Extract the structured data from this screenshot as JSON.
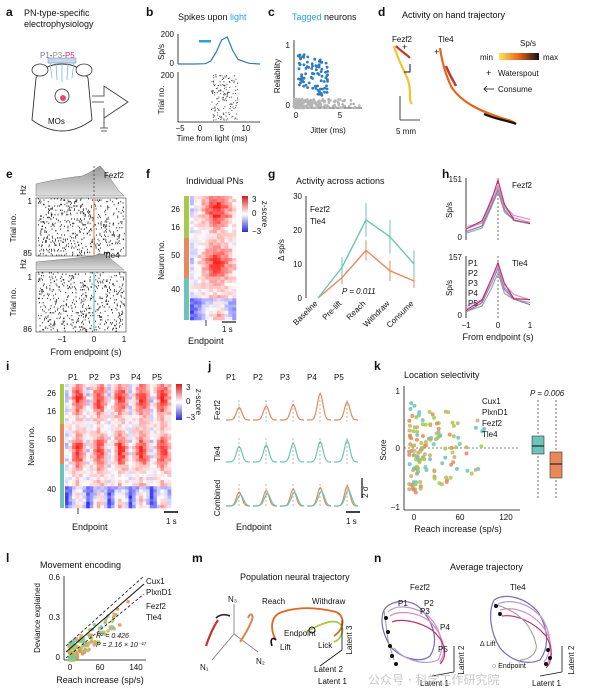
{
  "panels": {
    "a": {
      "letter": "a",
      "title1": "PN-type-specific",
      "title2": "electrophysiology",
      "label_p1": "P1",
      "label_dash1": "-",
      "label_p3": "P3",
      "label_dash2": "-",
      "label_p5": "P5",
      "label_area": "MOs"
    },
    "b": {
      "letter": "b",
      "title_pre": "Spikes upon ",
      "title_hl": "light",
      "ylab_top": "Sp/s",
      "yticks_top": [
        "200",
        "0"
      ],
      "yticks_bot": [
        "200"
      ],
      "ylab_bot": "Trial no.",
      "xticks": [
        "−5",
        "0",
        "5",
        "10"
      ],
      "xlabel": "Time from light (ms)"
    },
    "c": {
      "letter": "c",
      "title_hl": "Tagged",
      "title_rest": " neurons",
      "ylabel": "Reliability",
      "yticks": [
        "1",
        "0"
      ],
      "xticks": [
        "0",
        "5"
      ],
      "xlabel": "Jitter (ms)"
    },
    "d": {
      "letter": "d",
      "title": "Activity on hand trajectory",
      "fezf2": "Fezf2",
      "tle4": "Tle4",
      "cbar_title": "Sp/s",
      "cbar_min": "min",
      "cbar_max": "max",
      "legend_spout": "Waterspout",
      "legend_consume": "Consume",
      "scale": "5 mm"
    },
    "e": {
      "letter": "e",
      "hz1": "Hz",
      "name1": "Fezf2",
      "trial_top1": "1",
      "trial_bot1": "85",
      "ylab1": "Trial no.",
      "hz2": "Hz",
      "name2": "Tle4",
      "trial_top2": "1",
      "trial_bot2": "86",
      "ylab2": "Trial no.",
      "xticks": [
        "−1",
        "0",
        "1"
      ],
      "xlabel": "From endpoint (s)"
    },
    "f": {
      "letter": "f",
      "title": "Individual PNs",
      "yticks": [
        "26",
        "16",
        "50",
        "40"
      ],
      "ylabel": "Neuron no.",
      "cticks": [
        "3",
        "0",
        "−3"
      ],
      "clabel": "z-score",
      "scale": "1 s",
      "xlabel": "Endpoint"
    },
    "g": {
      "letter": "g",
      "title": "Activity across actions",
      "ylabel": "Δ sp/s",
      "yticks": [
        "30",
        "20",
        "10",
        "0"
      ],
      "legend_fezf2": "Fezf2",
      "legend_tle4": "Tle4",
      "pval": "P = 0.011",
      "xcats": [
        "Baseline",
        "Pre-lift",
        "Reach",
        "Withdraw",
        "Consume"
      ]
    },
    "h": {
      "letter": "h",
      "ymax1": "151",
      "name1": "Fezf2",
      "ylab": "Sp/s",
      "ymax2": "157",
      "name2": "Tle4",
      "ticks0": [
        "0",
        "0"
      ],
      "legend": [
        "P1",
        "P2",
        "P3",
        "P4",
        "P5"
      ],
      "xticks": [
        "−1",
        "0",
        "1"
      ],
      "xlabel": "From endpoint (s)"
    },
    "i": {
      "letter": "i",
      "cols": [
        "P1",
        "P2",
        "P3",
        "P4",
        "P5"
      ],
      "yticks": [
        "26",
        "16",
        "50",
        "40"
      ],
      "ylabel": "Neuron no.",
      "cticks": [
        "3",
        "0",
        "−3"
      ],
      "clabel": "z-score",
      "scale": "1 s",
      "xlabel": "Endpoint"
    },
    "j": {
      "letter": "j",
      "cols": [
        "P1",
        "P2",
        "P3",
        "P4",
        "P5"
      ],
      "rows": [
        "Fezf2",
        "Tle4",
        "Combined"
      ],
      "scale_y": "2 σ",
      "scale_x": "1 s",
      "xlabel": "Endpoint"
    },
    "k": {
      "letter": "k",
      "title": "Location selectivity",
      "ylabel": "Score",
      "yticks": [
        "1",
        "0",
        "−1"
      ],
      "xticks": [
        "0",
        "60",
        "120"
      ],
      "xlabel": "Reach increase (sp/s)",
      "legend": [
        "Cux1",
        "PlxnD1",
        "Fezf2",
        "Tle4"
      ],
      "pval": "P = 0.006"
    },
    "l": {
      "letter": "l",
      "title": "Movement encoding",
      "ylabel": "Deviance explained",
      "yticks": [
        "0.6",
        "0.3",
        "0"
      ],
      "xticks": [
        "0",
        "60",
        "140"
      ],
      "xlabel": "Reach increase (sp/s)",
      "legend": [
        "Cux1",
        "PlxnD1",
        "Fezf2",
        "Tle4"
      ],
      "r2": "R² = 0.426",
      "pval": "P = 2.16 × 10⁻¹⁷"
    },
    "m": {
      "letter": "m",
      "title": "Population neural trajectory",
      "n1": "N₁",
      "n2": "N₂",
      "n3": "N₃",
      "reach": "Reach",
      "withdraw": "Withdraw",
      "endpoint": "Endpoint",
      "lift": "Lift",
      "lick": "Lick",
      "lat1": "Latent 1",
      "lat2": "Latent 2",
      "lat3": "Latent 3"
    },
    "n": {
      "letter": "n",
      "title": "Average trajectory",
      "fezf2": "Fezf2",
      "tle4": "Tle4",
      "p1": "P1",
      "p2": "P2",
      "p3": "P3",
      "p4": "P4",
      "p5": "P5",
      "lat1a": "Latent 1",
      "lat2a": "Latent 2",
      "lat1b": "Latent 1",
      "lat2b": "Latent 2",
      "lift": "Δ Lift",
      "endpoint": "○ Endpoint",
      "watermark": "公众号 · 科学工作研究院"
    }
  },
  "colors": {
    "fezf2": "#e8895a",
    "tle4": "#6cc4b9",
    "cux1": "#a8c94a",
    "plxnd1": "#c4b070",
    "light": "#2aa3d8",
    "tagged": "#2b7bbf",
    "P1": "#7b6bb0",
    "P2": "#b59ad4",
    "P3": "#9a9a9a",
    "P4": "#e089b8",
    "P5": "#c0306a"
  },
  "chart_data": [
    {
      "panel": "b",
      "type": "line",
      "title": "Spikes upon light",
      "xlabel": "Time from light (ms)",
      "ylabel": "Sp/s",
      "x": [
        -5,
        -2,
        0,
        1,
        2,
        3,
        4,
        5,
        6,
        8,
        10
      ],
      "values": [
        0,
        0,
        2,
        20,
        80,
        160,
        180,
        90,
        30,
        5,
        0
      ],
      "ylim": [
        0,
        200
      ]
    },
    {
      "panel": "c",
      "type": "scatter",
      "title": "Tagged neurons",
      "xlabel": "Jitter (ms)",
      "ylabel": "Reliability",
      "xlim": [
        0,
        8
      ],
      "ylim": [
        0,
        1
      ]
    },
    {
      "panel": "g",
      "type": "line",
      "title": "Activity across actions",
      "ylabel": "Δ sp/s",
      "categories": [
        "Baseline",
        "Pre-lift",
        "Reach",
        "Withdraw",
        "Consume"
      ],
      "ylim": [
        0,
        30
      ],
      "series": [
        {
          "name": "Fezf2",
          "values": [
            0,
            6,
            14,
            8,
            5
          ],
          "err": [
            0,
            2,
            3,
            3,
            2
          ]
        },
        {
          "name": "Tle4",
          "values": [
            0,
            9,
            23,
            18,
            10
          ],
          "err": [
            0,
            3,
            5,
            5,
            4
          ]
        }
      ]
    },
    {
      "panel": "h",
      "type": "line",
      "xlabel": "From endpoint (s)",
      "ylabel": "Sp/s",
      "x": [
        -1,
        -0.5,
        -0.2,
        0,
        0.2,
        0.5,
        1
      ],
      "series": [
        {
          "name": "P1",
          "values": [
            20,
            40,
            90,
            130,
            80,
            50,
            40
          ]
        },
        {
          "name": "P2",
          "values": [
            25,
            45,
            100,
            140,
            85,
            55,
            45
          ]
        },
        {
          "name": "P3",
          "values": [
            20,
            35,
            85,
            120,
            70,
            50,
            45
          ]
        },
        {
          "name": "P4",
          "values": [
            30,
            50,
            110,
            145,
            90,
            60,
            50
          ]
        },
        {
          "name": "P5",
          "values": [
            25,
            45,
            105,
            151,
            95,
            55,
            45
          ]
        }
      ]
    },
    {
      "panel": "k",
      "type": "scatter",
      "title": "Location selectivity",
      "xlabel": "Reach increase (sp/s)",
      "ylabel": "Score",
      "xlim": [
        -10,
        130
      ],
      "ylim": [
        -1,
        1
      ]
    },
    {
      "panel": "l",
      "type": "scatter",
      "title": "Movement encoding",
      "xlabel": "Reach increase (sp/s)",
      "ylabel": "Deviance explained",
      "xlim": [
        -10,
        150
      ],
      "ylim": [
        0,
        0.7
      ]
    }
  ]
}
